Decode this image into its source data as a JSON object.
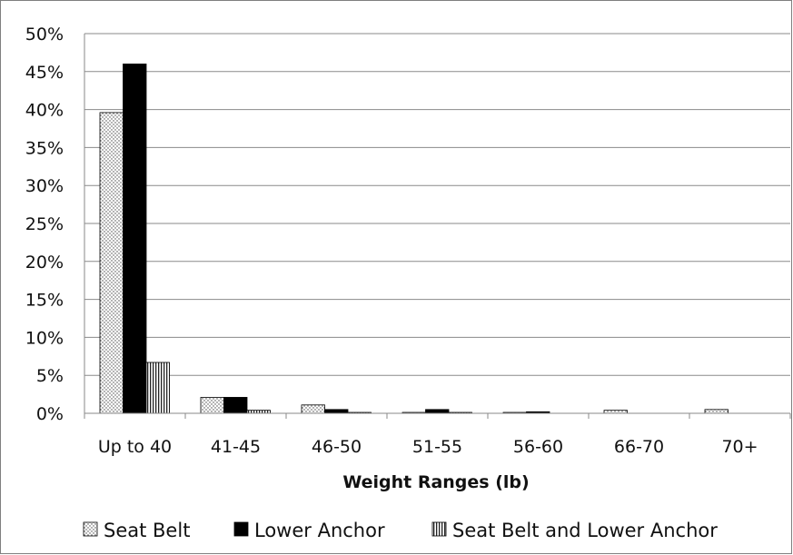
{
  "chart_data": {
    "type": "bar",
    "title": "",
    "xlabel": "Weight Ranges (lb)",
    "ylabel": "",
    "ylim": [
      0,
      50
    ],
    "y_ticks": [
      "0%",
      "5%",
      "10%",
      "15%",
      "20%",
      "25%",
      "30%",
      "35%",
      "40%",
      "45%",
      "50%"
    ],
    "y_tick_values": [
      0,
      5,
      10,
      15,
      20,
      25,
      30,
      35,
      40,
      45,
      50
    ],
    "categories": [
      "Up to 40",
      "41-45",
      "46-50",
      "51-55",
      "56-60",
      "66-70",
      "70+"
    ],
    "series": [
      {
        "name": "Seat Belt",
        "values": [
          39.6,
          2.1,
          1.1,
          0.1,
          0.1,
          0.4,
          0.5
        ]
      },
      {
        "name": "Lower Anchor",
        "values": [
          46.0,
          2.1,
          0.5,
          0.5,
          0.2,
          0.0,
          0.0
        ]
      },
      {
        "name": "Seat Belt and Lower Anchor",
        "values": [
          6.7,
          0.4,
          0.1,
          0.1,
          0.0,
          0.0,
          0.0
        ]
      }
    ],
    "grid": true,
    "legend_position": "bottom"
  },
  "colors": {
    "seat_belt": "#ffffff",
    "lower_anchor": "#000000",
    "combined": "#ffffff",
    "grid": "#8a8a8a",
    "frame": "#7f7f7f"
  }
}
